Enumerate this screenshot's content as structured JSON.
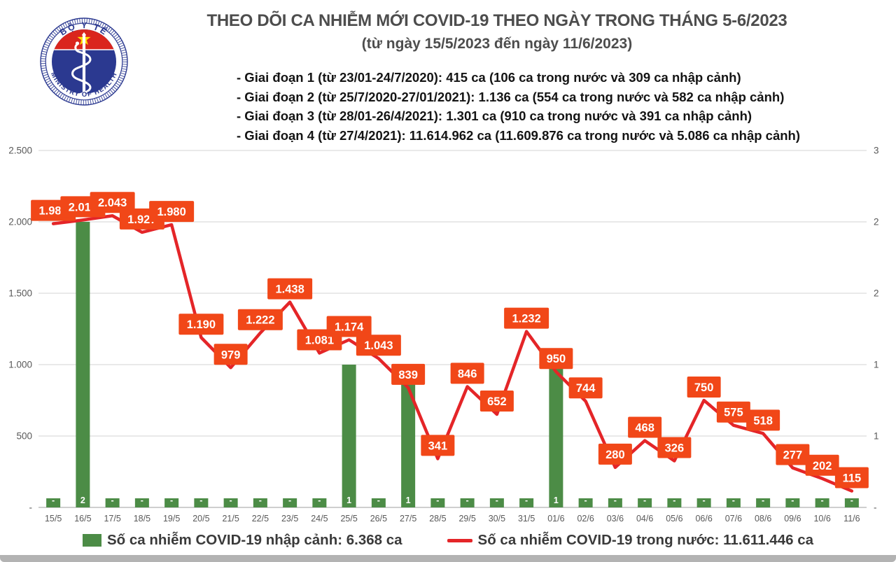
{
  "header": {
    "logo": {
      "top_text": "BỘ Y TẾ",
      "bottom_text": "MINISTRY OF HEALTH"
    },
    "title": "THEO DÕI CA NHIỄM MỚI COVID-19 THEO NGÀY TRONG THÁNG 5-6/2023",
    "subtitle": "(từ ngày 15/5/2023 đến ngày 11/6/2023)",
    "phase_notes": [
      "- Giai đoạn 1 (từ 23/01-24/7/2020): 415 ca (106 ca trong nước và 309 ca nhập cảnh)",
      "- Giai đoạn 2 (từ 25/7/2020-27/01/2021): 1.136 ca (554 ca trong nước và 582 ca nhập cảnh)",
      "- Giai đoạn 3 (từ 28/01-26/4/2021): 1.301 ca (910 ca trong nước và 391 ca nhập cảnh)",
      "- Giai đoạn 4 (từ 27/4/2021): 11.614.962 ca (11.609.876 ca trong nước và 5.086 ca nhập cảnh)"
    ]
  },
  "chart_data": {
    "type": "bar",
    "subtype": "combo-bar-line-dual-axis",
    "categories": [
      "15/5",
      "16/5",
      "17/5",
      "18/5",
      "19/5",
      "20/5",
      "21/5",
      "22/5",
      "23/5",
      "24/5",
      "25/5",
      "26/5",
      "27/5",
      "28/5",
      "29/5",
      "30/5",
      "31/5",
      "01/6",
      "02/6",
      "03/6",
      "04/6",
      "05/6",
      "06/6",
      "07/6",
      "08/6",
      "09/6",
      "10/6",
      "11/6"
    ],
    "series": [
      {
        "name": "Số ca nhiễm COVID-19 nhập cảnh",
        "type": "bar",
        "axis": "secondary",
        "values": [
          0,
          2,
          0,
          0,
          0,
          0,
          0,
          0,
          0,
          0,
          1,
          0,
          1,
          0,
          0,
          0,
          0,
          1,
          0,
          0,
          0,
          0,
          0,
          0,
          0,
          0,
          0,
          0
        ],
        "labels": [
          "-",
          "2",
          "-",
          "-",
          "-",
          "-",
          "-",
          "-",
          "-",
          "-",
          "1",
          "-",
          "1",
          "-",
          "-",
          "-",
          "-",
          "1",
          "-",
          "-",
          "-",
          "-",
          "-",
          "-",
          "-",
          "-",
          "-",
          "-"
        ]
      },
      {
        "name": "Số ca nhiễm COVID-19 trong nước",
        "type": "line",
        "axis": "primary",
        "values": [
          1987,
          2013,
          2043,
          1927,
          1980,
          1190,
          979,
          1222,
          1438,
          1081,
          1174,
          1043,
          839,
          341,
          846,
          652,
          1232,
          950,
          744,
          280,
          468,
          326,
          750,
          575,
          518,
          277,
          202,
          115
        ],
        "labels": [
          "1.987",
          "2.013",
          "2.043",
          "1.927",
          "1.980",
          "1.190",
          "979",
          "1.222",
          "1.438",
          "1.081",
          "1.174",
          "1.043",
          "839",
          "341",
          "846",
          "652",
          "1.232",
          "950",
          "744",
          "280",
          "468",
          "326",
          "750",
          "575",
          "518",
          "277",
          "202",
          "115"
        ]
      }
    ],
    "title": "THEO DÕI CA NHIỄM MỚI COVID-19 THEO NGÀY TRONG THÁNG 5-6/2023",
    "xlabel": "",
    "ylabel": "",
    "left_axis": {
      "min": 0,
      "max": 2500,
      "ticks": [
        "2.500",
        "2.000",
        "1.500",
        "1.000",
        "500",
        "-"
      ]
    },
    "right_axis": {
      "visible_ticks": [
        "3",
        "2",
        "2",
        "1",
        "1",
        "-"
      ]
    },
    "grid": true,
    "legend_position": "bottom"
  },
  "legend": {
    "items": [
      {
        "swatch": "bar",
        "label": "Số ca nhiễm COVID-19 nhập cảnh: 6.368 ca"
      },
      {
        "swatch": "line",
        "label": "Số ca nhiễm COVID-19 trong nước: 11.611.446 ca"
      }
    ]
  },
  "colors": {
    "bar_green": "#4C8C46",
    "line_red": "#E42528",
    "label_box_orange": "#F14718",
    "label_text": "#ffffff",
    "axis_text": "#595959",
    "gridline": "#DCDCDC",
    "axis_line": "#BFBFBF",
    "title_gray": "#4d4d4d",
    "logo_navy": "#2B3990",
    "logo_red": "#DA251D",
    "logo_star_yellow": "#FFDE00"
  }
}
